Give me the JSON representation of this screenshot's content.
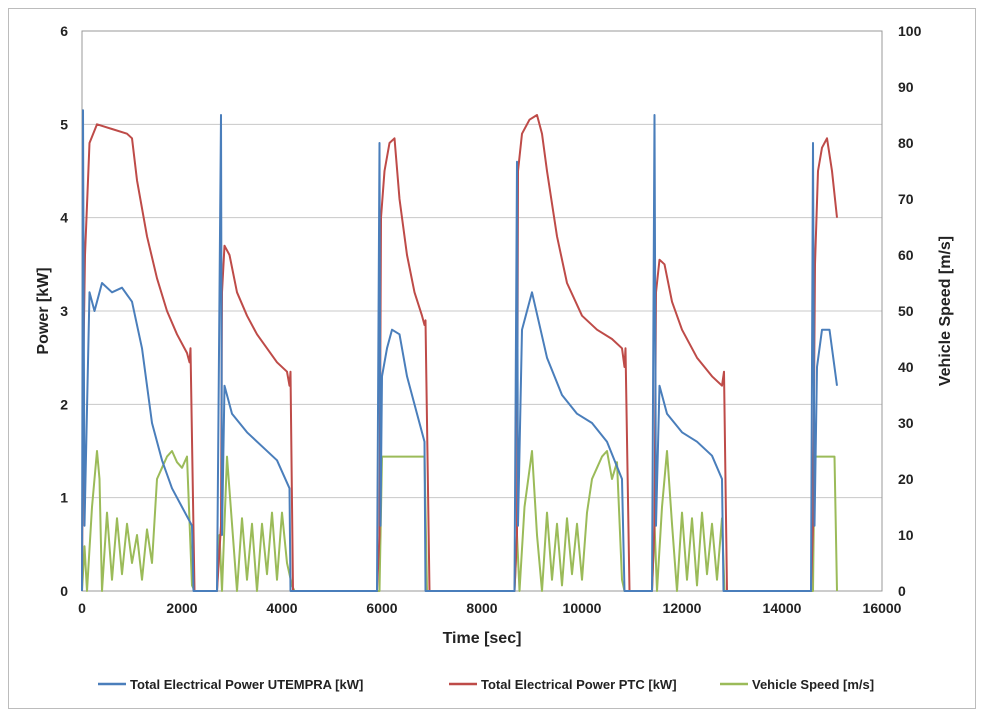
{
  "chart_data": {
    "type": "line",
    "xlabel": "Time [sec]",
    "ylabel_left": "Power [kW]",
    "ylabel_right": "Vehicle Speed [m/s]",
    "xlim": [
      0,
      16000
    ],
    "ylim_left": [
      0,
      6
    ],
    "ylim_right": [
      0,
      100
    ],
    "x_ticks": [
      "0",
      "2000",
      "4000",
      "6000",
      "8000",
      "10000",
      "12000",
      "14000",
      "16000"
    ],
    "y_left_ticks": [
      "0",
      "1",
      "2",
      "3",
      "4",
      "5",
      "6"
    ],
    "y_right_ticks": [
      "0",
      "10",
      "20",
      "30",
      "40",
      "50",
      "60",
      "70",
      "80",
      "90",
      "100"
    ],
    "grid": true,
    "legend_position": "bottom",
    "series": [
      {
        "name": "Total Electrical Power UTEMPRA [kW]",
        "axis": "left",
        "color": "#4a7ebb",
        "x": [
          0,
          20,
          50,
          150,
          250,
          400,
          600,
          800,
          1000,
          1200,
          1400,
          1600,
          1800,
          2000,
          2200,
          2230,
          2700,
          2780,
          2800,
          2850,
          3000,
          3300,
          3600,
          3900,
          4150,
          4170,
          5900,
          5950,
          5970,
          6000,
          6100,
          6200,
          6350,
          6500,
          6700,
          6850,
          6870,
          8650,
          8700,
          8720,
          8800,
          9000,
          9300,
          9600,
          9900,
          10200,
          10500,
          10800,
          10850,
          11400,
          11450,
          11480,
          11550,
          11700,
          12000,
          12300,
          12600,
          12800,
          12830,
          14580,
          14620,
          14650,
          14700,
          14800,
          14950,
          15100
        ],
        "values": [
          0,
          5.15,
          0.7,
          3.2,
          3.0,
          3.3,
          3.2,
          3.25,
          3.1,
          2.6,
          1.8,
          1.4,
          1.1,
          0.9,
          0.7,
          0,
          0,
          5.1,
          0.6,
          2.2,
          1.9,
          1.7,
          1.55,
          1.4,
          1.1,
          0,
          0,
          4.8,
          0.7,
          2.3,
          2.6,
          2.8,
          2.75,
          2.3,
          1.9,
          1.6,
          0,
          0,
          4.6,
          0.7,
          2.8,
          3.2,
          2.5,
          2.1,
          1.9,
          1.8,
          1.6,
          1.2,
          0,
          0,
          5.1,
          0.7,
          2.2,
          1.9,
          1.7,
          1.6,
          1.45,
          1.2,
          0,
          0,
          4.8,
          0.7,
          2.4,
          2.8,
          2.8,
          2.2
        ]
      },
      {
        "name": "Total Electrical Power PTC [kW]",
        "axis": "left",
        "color": "#be4b48",
        "x": [
          0,
          20,
          60,
          150,
          300,
          600,
          900,
          1000,
          1100,
          1300,
          1500,
          1700,
          1900,
          2100,
          2150,
          2170,
          2250,
          2700,
          2780,
          2800,
          2850,
          2950,
          3100,
          3300,
          3500,
          3700,
          3900,
          4100,
          4150,
          4170,
          4220,
          5900,
          5950,
          5980,
          6050,
          6150,
          6250,
          6350,
          6500,
          6650,
          6800,
          6850,
          6870,
          6950,
          8650,
          8700,
          8720,
          8800,
          8950,
          9100,
          9200,
          9300,
          9500,
          9700,
          10000,
          10300,
          10600,
          10800,
          10850,
          10870,
          10950,
          11400,
          11450,
          11480,
          11550,
          11650,
          11800,
          12000,
          12300,
          12600,
          12800,
          12840,
          12900,
          14580,
          14620,
          14660,
          14720,
          14800,
          14900,
          15000,
          15100
        ],
        "values": [
          0,
          2.2,
          3.6,
          4.8,
          5.0,
          4.95,
          4.9,
          4.85,
          4.4,
          3.8,
          3.35,
          3.0,
          2.75,
          2.55,
          2.45,
          2.6,
          0,
          0,
          0.7,
          3.2,
          3.7,
          3.6,
          3.2,
          2.95,
          2.75,
          2.6,
          2.45,
          2.35,
          2.2,
          2.35,
          0,
          0,
          0.6,
          4.0,
          4.5,
          4.8,
          4.85,
          4.2,
          3.6,
          3.2,
          2.95,
          2.85,
          2.9,
          0,
          0,
          0.6,
          4.5,
          4.9,
          5.05,
          5.1,
          4.9,
          4.5,
          3.8,
          3.3,
          2.95,
          2.8,
          2.7,
          2.6,
          2.4,
          2.6,
          0,
          0,
          0.7,
          3.2,
          3.55,
          3.5,
          3.1,
          2.8,
          2.5,
          2.3,
          2.2,
          2.35,
          0,
          0,
          0.7,
          3.5,
          4.5,
          4.75,
          4.85,
          4.5,
          4.0
        ]
      },
      {
        "name": "Vehicle Speed [m/s]",
        "axis": "right",
        "color": "#9bbb59",
        "x": [
          0,
          50,
          100,
          200,
          300,
          350,
          400,
          500,
          600,
          700,
          800,
          900,
          1000,
          1100,
          1200,
          1300,
          1400,
          1500,
          1600,
          1700,
          1800,
          1900,
          2000,
          2100,
          2200,
          2250,
          2700,
          2750,
          2800,
          2900,
          3000,
          3100,
          3200,
          3300,
          3400,
          3500,
          3600,
          3700,
          3800,
          3900,
          4000,
          4100,
          4200,
          4250,
          5900,
          5950,
          6000,
          6850,
          6900,
          8650,
          8700,
          8750,
          8850,
          9000,
          9100,
          9200,
          9300,
          9400,
          9500,
          9600,
          9700,
          9800,
          9900,
          10000,
          10100,
          10200,
          10300,
          10400,
          10500,
          10600,
          10700,
          10800,
          10850,
          10900,
          11400,
          11450,
          11500,
          11600,
          11700,
          11800,
          11900,
          12000,
          12100,
          12200,
          12300,
          12400,
          12500,
          12600,
          12700,
          12800,
          12850,
          14580,
          14620,
          14650,
          15050,
          15100
        ],
        "values": [
          0,
          8,
          0,
          15,
          25,
          20,
          0,
          14,
          2,
          13,
          3,
          12,
          5,
          10,
          2,
          11,
          5,
          20,
          22,
          24,
          25,
          23,
          22,
          24,
          1,
          0,
          0,
          10,
          0,
          24,
          12,
          0,
          13,
          2,
          12,
          0,
          12,
          3,
          14,
          2,
          14,
          5,
          1,
          0,
          0,
          0,
          24,
          24,
          0,
          0,
          10,
          0,
          15,
          25,
          10,
          0,
          14,
          2,
          12,
          1,
          13,
          3,
          12,
          2,
          14,
          20,
          22,
          24,
          25,
          20,
          23,
          2,
          0,
          0,
          0,
          12,
          0,
          15,
          25,
          12,
          0,
          14,
          2,
          13,
          1,
          14,
          3,
          12,
          2,
          13,
          0,
          0,
          0,
          24,
          24,
          0
        ]
      }
    ]
  }
}
